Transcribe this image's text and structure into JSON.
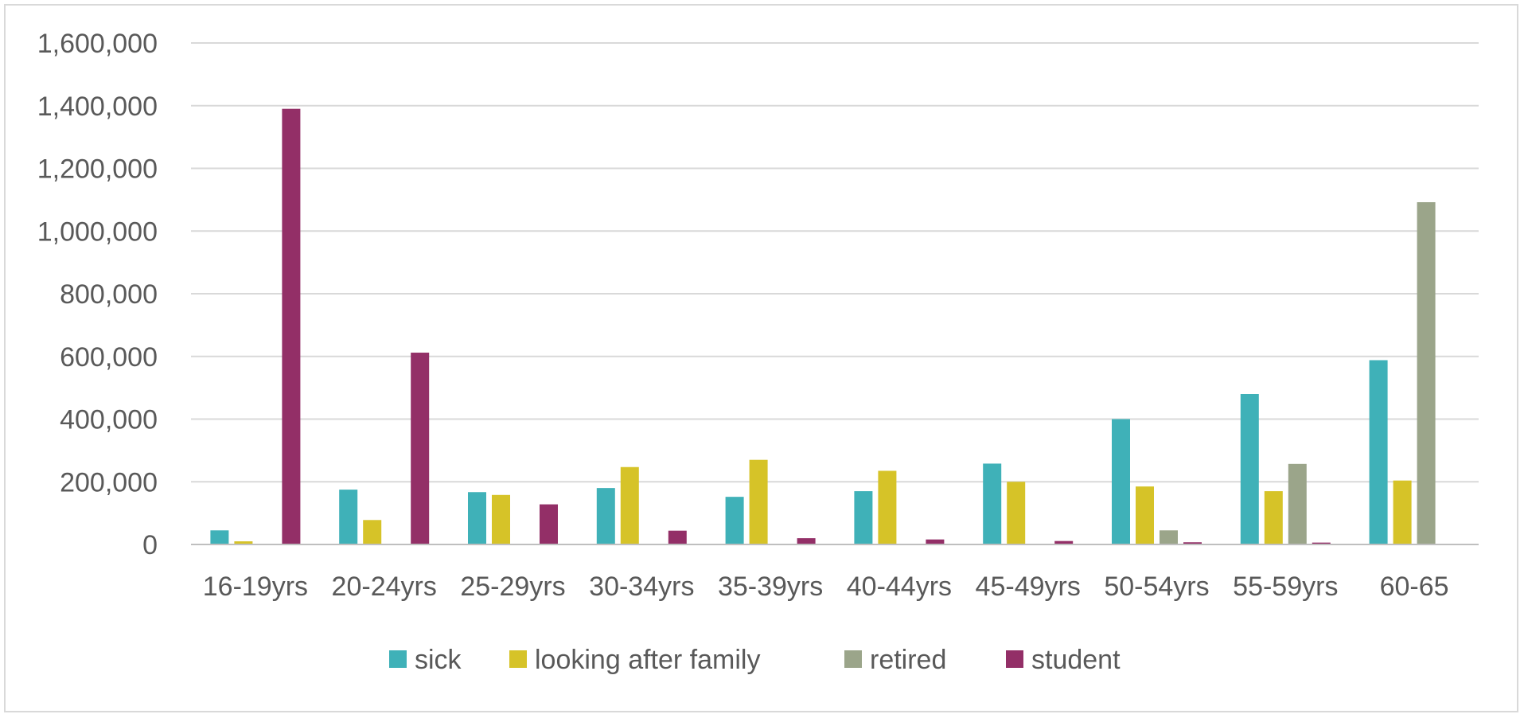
{
  "chart_data": {
    "type": "bar",
    "title": "",
    "xlabel": "",
    "ylabel": "",
    "ylim": [
      0,
      1600000
    ],
    "yticks": [
      0,
      200000,
      400000,
      600000,
      800000,
      1000000,
      1200000,
      1400000,
      1600000
    ],
    "ytick_labels": [
      "0",
      "200,000",
      "400,000",
      "600,000",
      "800,000",
      "1,000,000",
      "1,200,000",
      "1,400,000",
      "1,600,000"
    ],
    "grid": true,
    "legend_position": "bottom",
    "categories": [
      "16-19yrs",
      "20-24yrs",
      "25-29yrs",
      "30-34yrs",
      "35-39yrs",
      "40-44yrs",
      "45-49yrs",
      "50-54yrs",
      "55-59yrs",
      "60-65"
    ],
    "series": [
      {
        "name": "sick",
        "color": "#3fb1b8",
        "values": [
          45000,
          175000,
          167000,
          180000,
          152000,
          170000,
          258000,
          400000,
          480000,
          588000
        ]
      },
      {
        "name": "looking after family",
        "color": "#d6c328",
        "values": [
          10000,
          78000,
          158000,
          247000,
          270000,
          235000,
          200000,
          185000,
          170000,
          204000
        ]
      },
      {
        "name": "retired",
        "color": "#9ba58a",
        "values": [
          0,
          0,
          0,
          0,
          2000,
          0,
          0,
          45000,
          257000,
          1092000
        ]
      },
      {
        "name": "student",
        "color": "#932f67",
        "values": [
          1390000,
          612000,
          128000,
          44000,
          20000,
          16000,
          11000,
          7000,
          6000,
          0
        ]
      }
    ],
    "gridline_color": "#d9d9d9",
    "axis_color": "#bfbfbf"
  }
}
